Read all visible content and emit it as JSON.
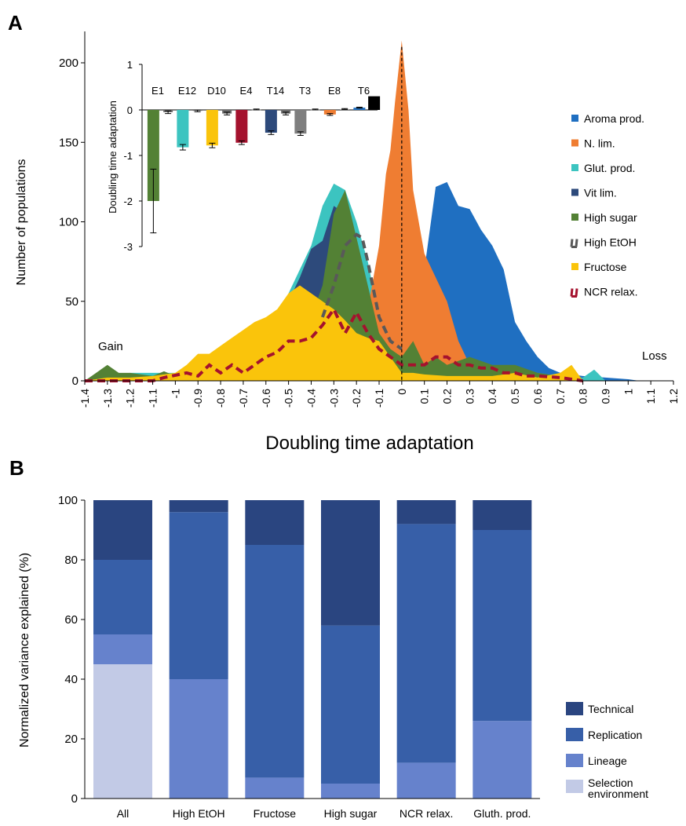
{
  "panel_a_letter": "A",
  "panel_b_letter": "B",
  "chart_data": [
    {
      "type": "area",
      "xlabel": "Doubling time adaptation",
      "ylabel": "Number of populations",
      "xlim": [
        -1.4,
        1.2
      ],
      "ylim": [
        0,
        200
      ],
      "x_ticks": [
        "-1.4",
        "-1.3",
        "-1.2",
        "-1.1",
        "-1",
        "-0.9",
        "-0.8",
        "-0.7",
        "-0.6",
        "-0.5",
        "-0.4",
        "-0.3",
        "-0.2",
        "-0.1",
        "0",
        "0.1",
        "0.2",
        "0.3",
        "0.4",
        "0.5",
        "0.6",
        "0.7",
        "0.8",
        "0.9",
        "1",
        "1.1",
        "1.2"
      ],
      "y_ticks": [
        "0",
        "50",
        "100",
        "150",
        "200"
      ],
      "annotation_left": "Gain",
      "annotation_right": "Loss",
      "legend_position": "right",
      "vertical_reference_line": 0,
      "series": [
        {
          "name": "Aroma prod.",
          "color": "#1f6fc1",
          "style": "area",
          "x": [
            -0.05,
            0.0,
            0.05,
            0.1,
            0.15,
            0.2,
            0.25,
            0.3,
            0.35,
            0.4,
            0.45,
            0.5,
            0.55,
            0.6,
            0.65,
            0.7,
            0.8,
            0.9,
            1.0,
            1.05
          ],
          "y": [
            0,
            8,
            25,
            70,
            122,
            125,
            110,
            108,
            95,
            85,
            70,
            37,
            25,
            15,
            8,
            5,
            3,
            2,
            1,
            0
          ]
        },
        {
          "name": "Glut. prod.",
          "color": "#3cc4c0",
          "style": "area",
          "x": [
            -1.4,
            -1.3,
            -1.2,
            -1.1,
            -1.0,
            -0.9,
            -0.8,
            -0.7,
            -0.6,
            -0.55,
            -0.5,
            -0.45,
            -0.4,
            -0.35,
            -0.3,
            -0.25,
            -0.2,
            -0.15,
            -0.1,
            -0.05,
            0.0,
            0.05,
            0.1,
            0.2,
            0.3,
            0.4,
            0.5,
            0.6,
            0.7,
            0.8,
            0.85,
            0.9
          ],
          "y": [
            0,
            2,
            5,
            5,
            5,
            7,
            10,
            15,
            25,
            40,
            55,
            70,
            85,
            110,
            124,
            120,
            100,
            75,
            40,
            25,
            15,
            10,
            8,
            8,
            8,
            8,
            5,
            5,
            3,
            2,
            7,
            0
          ]
        },
        {
          "name": "N. lim.",
          "color": "#ef7d32",
          "style": "area",
          "x": [
            -0.25,
            -0.2,
            -0.15,
            -0.1,
            -0.07,
            -0.05,
            -0.03,
            0.0,
            0.03,
            0.05,
            0.1,
            0.15,
            0.2,
            0.25,
            0.3,
            0.35
          ],
          "y": [
            0,
            20,
            45,
            85,
            130,
            145,
            175,
            214,
            170,
            120,
            80,
            65,
            50,
            25,
            10,
            0
          ]
        },
        {
          "name": "Vit lim.",
          "color": "#2d4a7b",
          "style": "area",
          "x": [
            -0.7,
            -0.6,
            -0.5,
            -0.45,
            -0.4,
            -0.35,
            -0.3,
            -0.25,
            -0.2,
            -0.15,
            -0.1,
            -0.05,
            0.0
          ],
          "y": [
            0,
            15,
            50,
            65,
            83,
            88,
            110,
            105,
            80,
            40,
            20,
            10,
            0
          ]
        },
        {
          "name": "High sugar",
          "color": "#538135",
          "style": "area",
          "x": [
            -1.4,
            -1.3,
            -1.25,
            -1.2,
            -1.1,
            -1.05,
            -1.0,
            -0.9,
            -0.8,
            -0.7,
            -0.6,
            -0.5,
            -0.4,
            -0.35,
            -0.3,
            -0.25,
            -0.2,
            -0.15,
            -0.1,
            -0.05,
            0.0,
            0.05,
            0.1,
            0.15,
            0.2,
            0.3,
            0.4,
            0.5,
            0.6,
            0.7,
            0.8
          ],
          "y": [
            0,
            10,
            5,
            5,
            3,
            6,
            3,
            3,
            5,
            10,
            15,
            25,
            40,
            60,
            105,
            120,
            90,
            60,
            30,
            20,
            15,
            25,
            10,
            15,
            10,
            15,
            10,
            10,
            5,
            3,
            0
          ]
        },
        {
          "name": "Fructose",
          "color": "#fac40b",
          "style": "area",
          "x": [
            -1.4,
            -1.3,
            -1.2,
            -1.1,
            -1.0,
            -0.95,
            -0.9,
            -0.85,
            -0.8,
            -0.75,
            -0.7,
            -0.65,
            -0.6,
            -0.55,
            -0.5,
            -0.45,
            -0.4,
            -0.35,
            -0.3,
            -0.25,
            -0.2,
            -0.15,
            -0.1,
            -0.05,
            0.0,
            0.05,
            0.1,
            0.2,
            0.3,
            0.4,
            0.5,
            0.6,
            0.7,
            0.75,
            0.8
          ],
          "y": [
            0,
            2,
            2,
            3,
            5,
            10,
            17,
            17,
            22,
            27,
            32,
            37,
            40,
            45,
            55,
            60,
            55,
            50,
            45,
            38,
            30,
            27,
            25,
            15,
            5,
            5,
            4,
            3,
            3,
            3,
            5,
            2,
            5,
            10,
            0
          ]
        },
        {
          "name": "High EtOH",
          "color": "#595959",
          "style": "dashed-line",
          "x": [
            -0.35,
            -0.3,
            -0.25,
            -0.2,
            -0.175,
            -0.15,
            -0.1,
            -0.05,
            0.0
          ],
          "y": [
            40,
            60,
            85,
            92,
            90,
            75,
            40,
            25,
            20
          ]
        },
        {
          "name": "NCR relax.",
          "color": "#a5122e",
          "style": "dashed-line",
          "x": [
            -1.4,
            -1.1,
            -1.05,
            -0.95,
            -0.9,
            -0.85,
            -0.8,
            -0.75,
            -0.7,
            -0.65,
            -0.6,
            -0.55,
            -0.5,
            -0.45,
            -0.4,
            -0.35,
            -0.3,
            -0.25,
            -0.2,
            -0.15,
            -0.1,
            -0.05,
            0.0,
            0.05,
            0.1,
            0.15,
            0.2,
            0.25,
            0.3,
            0.35,
            0.4,
            0.45,
            0.5,
            0.55,
            0.6,
            0.7,
            0.8
          ],
          "y": [
            0,
            0,
            2,
            5,
            3,
            10,
            5,
            10,
            5,
            10,
            15,
            18,
            25,
            25,
            27,
            35,
            45,
            30,
            43,
            30,
            20,
            15,
            10,
            10,
            10,
            15,
            15,
            10,
            10,
            8,
            8,
            5,
            5,
            3,
            3,
            2,
            0
          ]
        }
      ]
    },
    {
      "type": "bar",
      "title": "",
      "ylabel": "Doubling time adaptation",
      "ylim": [
        -3,
        1
      ],
      "y_ticks": [
        "1",
        "0",
        "-1",
        "-2",
        "-3"
      ],
      "categories": [
        "E1",
        "E12",
        "D10",
        "E4",
        "T14",
        "T3",
        "E8",
        "T6"
      ],
      "bars": [
        {
          "color": "#538135",
          "value": -2.0,
          "error": 0.7
        },
        {
          "color": "#6b6b6b",
          "value": -0.05,
          "error": 0.03
        },
        {
          "color": "#3cc4c0",
          "value": -0.82,
          "error": 0.06
        },
        {
          "color": "#6b6b6b",
          "value": -0.02,
          "error": 0.02
        },
        {
          "color": "#fac40b",
          "value": -0.78,
          "error": 0.05
        },
        {
          "color": "#6b6b6b",
          "value": -0.08,
          "error": 0.03
        },
        {
          "color": "#a5122e",
          "value": -0.72,
          "error": 0.04
        },
        {
          "color": "#6b6b6b",
          "value": 0.01,
          "error": 0.01
        },
        {
          "color": "#2d4a7b",
          "value": -0.5,
          "error": 0.04
        },
        {
          "color": "#6b6b6b",
          "value": -0.08,
          "error": 0.03
        },
        {
          "color": "#7f7f7f",
          "value": -0.52,
          "error": 0.04
        },
        {
          "color": "#6b6b6b",
          "value": 0.01,
          "error": 0.01
        },
        {
          "color": "#ef7d32",
          "value": -0.1,
          "error": 0.02
        },
        {
          "color": "#a6a6a6",
          "value": 0.02,
          "error": 0.01
        },
        {
          "color": "#1f6fc1",
          "value": 0.05,
          "error": 0.01
        },
        {
          "color": "#000000",
          "value": 0.3,
          "error": 0.0
        }
      ]
    },
    {
      "type": "bar",
      "stacked": true,
      "ylabel": "Normalized variance explained (%)",
      "ylim": [
        0,
        100
      ],
      "y_ticks": [
        "0",
        "20",
        "40",
        "60",
        "80",
        "100"
      ],
      "categories": [
        "All",
        "High EtOH",
        "Fructose",
        "High sugar",
        "NCR relax.",
        "Gluth. prod."
      ],
      "legend_position": "bottom-right",
      "series": [
        {
          "name": "Selection environment",
          "legend_line1": "Selection",
          "legend_line2": "environment",
          "color": "#c2cae6",
          "values": [
            45,
            0,
            0,
            0,
            0,
            0
          ]
        },
        {
          "name": "Lineage",
          "color": "#6682cc",
          "values": [
            10,
            40,
            7,
            5,
            12,
            26
          ]
        },
        {
          "name": "Replication",
          "color": "#375fa8",
          "values": [
            25,
            56,
            78,
            53,
            80,
            64
          ]
        },
        {
          "name": "Technical",
          "color": "#2a4580",
          "values": [
            20,
            4,
            15,
            42,
            8,
            10
          ]
        }
      ]
    }
  ]
}
